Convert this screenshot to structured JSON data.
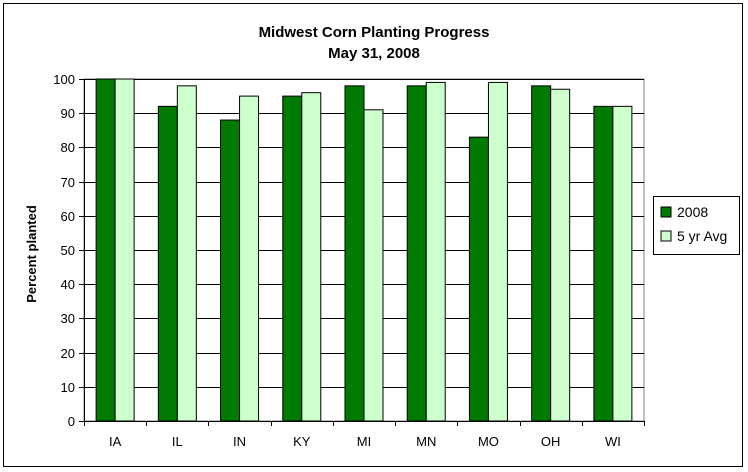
{
  "chart_data": {
    "type": "bar",
    "title": "Midwest Corn Planting Progress",
    "subtitle": "May 31, 2008",
    "xlabel": "",
    "ylabel": "Percent planted",
    "ylim": [
      0,
      100
    ],
    "yticks": [
      0,
      10,
      20,
      30,
      40,
      50,
      60,
      70,
      80,
      90,
      100
    ],
    "categories": [
      "IA",
      "IL",
      "IN",
      "KY",
      "MI",
      "MN",
      "MO",
      "OH",
      "WI"
    ],
    "series": [
      {
        "name": "2008",
        "color": "#007A00",
        "values": [
          100,
          92,
          88,
          95,
          98,
          98,
          83,
          98,
          92
        ]
      },
      {
        "name": "5 yr Avg",
        "color": "#CCFFCC",
        "values": [
          100,
          98,
          95,
          96,
          91,
          99,
          99,
          97,
          92
        ]
      }
    ],
    "grid": true,
    "legend_position": "right",
    "plot_background": "#FFFFFF"
  }
}
